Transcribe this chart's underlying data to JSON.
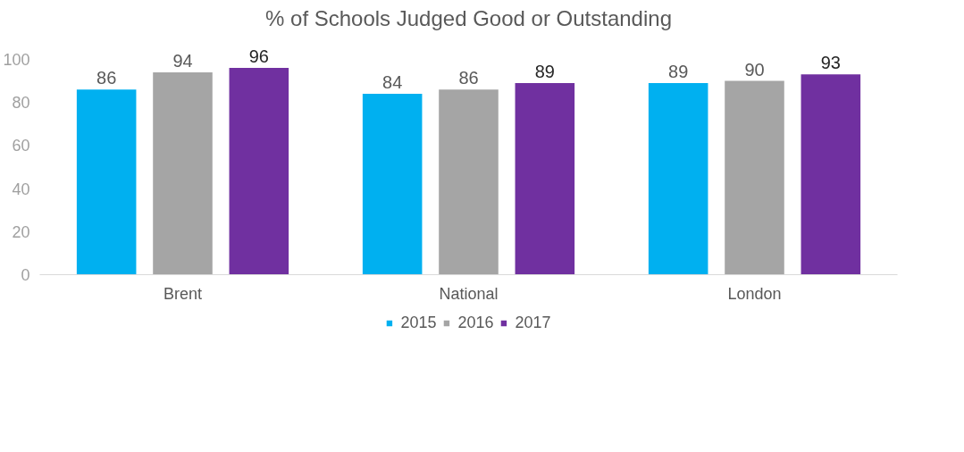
{
  "chart_data": {
    "type": "bar",
    "title": "% of Schools Judged Good or Outstanding",
    "categories": [
      "Brent",
      "National",
      "London"
    ],
    "series": [
      {
        "name": "2015",
        "color": "#00b0f0",
        "values": [
          86,
          84,
          89
        ]
      },
      {
        "name": "2016",
        "color": "#a5a5a5",
        "values": [
          94,
          86,
          90
        ]
      },
      {
        "name": "2017",
        "color": "#7030a0",
        "values": [
          96,
          89,
          93
        ]
      }
    ],
    "ylim": [
      0,
      100
    ],
    "yticks": [
      0,
      20,
      40,
      60,
      80,
      100
    ],
    "data_labels": true,
    "grid": false,
    "legend": "bottom"
  }
}
